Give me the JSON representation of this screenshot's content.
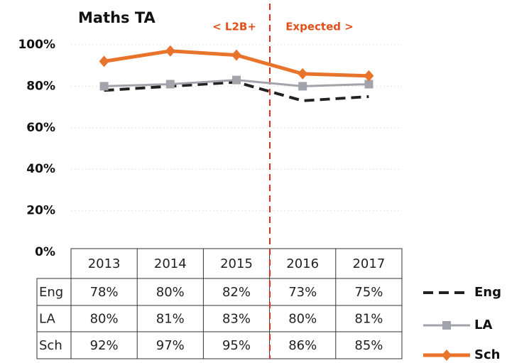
{
  "chart_data": {
    "type": "line",
    "title": "Maths TA",
    "annotations": [
      "< L2B+",
      "Expected >"
    ],
    "categories": [
      "2013",
      "2014",
      "2015",
      "2016",
      "2017"
    ],
    "series": [
      {
        "name": "Eng",
        "color": "#222222",
        "dash": true,
        "marker": "none",
        "values": [
          78,
          80,
          82,
          73,
          75
        ],
        "value_labels": [
          "78%",
          "80%",
          "82%",
          "73%",
          "75%"
        ]
      },
      {
        "name": "LA",
        "color": "#a3a3ab",
        "dash": false,
        "marker": "square",
        "values": [
          80,
          81,
          83,
          80,
          81
        ],
        "value_labels": [
          "80%",
          "81%",
          "83%",
          "80%",
          "81%"
        ]
      },
      {
        "name": "Sch",
        "color": "#e8732a",
        "dash": false,
        "marker": "diamond",
        "values": [
          92,
          97,
          95,
          86,
          85
        ],
        "value_labels": [
          "92%",
          "97%",
          "95%",
          "86%",
          "85%"
        ]
      }
    ],
    "ylim": [
      0,
      100
    ],
    "yticks": [
      {
        "value": 0,
        "label": "0%"
      },
      {
        "value": 20,
        "label": "20%"
      },
      {
        "value": 40,
        "label": "40%"
      },
      {
        "value": 60,
        "label": "60%"
      },
      {
        "value": 80,
        "label": "80%"
      },
      {
        "value": 100,
        "label": "100%"
      }
    ],
    "grid": true,
    "legend": "right"
  }
}
